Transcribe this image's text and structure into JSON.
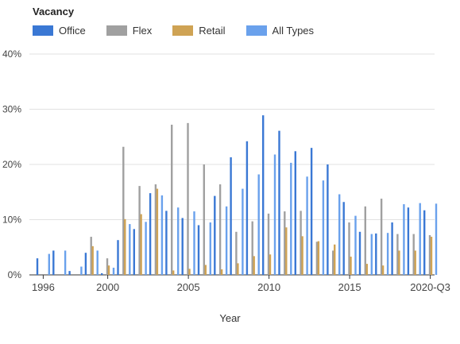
{
  "chart_data": {
    "type": "bar",
    "legend_title": "Vacancy",
    "legend_position": "top-left",
    "xlabel": "Year",
    "ylabel": "",
    "ylim": [
      0,
      40
    ],
    "y_ticks": [
      "0%",
      "10%",
      "20%",
      "30%",
      "40%"
    ],
    "y_tick_values": [
      0,
      10,
      20,
      30,
      40
    ],
    "x_tick_labels": [
      "1996",
      "2000",
      "2005",
      "2010",
      "2015",
      "2020-Q3"
    ],
    "grid": "horizontal",
    "categories": [
      "1996",
      "1997",
      "1998",
      "1999",
      "2000",
      "2001",
      "2002",
      "2003",
      "2004",
      "2005",
      "2006",
      "2007",
      "2008",
      "2009",
      "2010",
      "2011",
      "2012",
      "2013",
      "2014",
      "2015",
      "2016",
      "2017",
      "2018",
      "2019",
      "2020-Q3"
    ],
    "series": [
      {
        "name": "Office",
        "color": "#3a78d4",
        "values": [
          3.0,
          4.4,
          0.7,
          4.0,
          0.3,
          6.3,
          8.3,
          14.8,
          11.6,
          10.3,
          9.0,
          14.3,
          21.3,
          24.2,
          28.9,
          26.1,
          22.4,
          23.0,
          20.0,
          13.2,
          7.8,
          7.5,
          9.5,
          12.2,
          11.7
        ]
      },
      {
        "name": "Flex",
        "color": "#a0a0a0",
        "values": [
          0,
          0,
          0,
          6.9,
          3.0,
          23.2,
          16.1,
          16.4,
          27.2,
          27.5,
          20.0,
          16.4,
          7.8,
          9.7,
          11.1,
          11.5,
          11.6,
          6.0,
          4.4,
          9.5,
          12.4,
          13.8,
          7.4,
          7.4,
          7.2
        ]
      },
      {
        "name": "Retail",
        "color": "#cfa354",
        "values": [
          0,
          0,
          0,
          5.2,
          1.7,
          10.1,
          11.0,
          15.6,
          0.8,
          1.1,
          1.8,
          1.0,
          2.1,
          3.4,
          3.7,
          8.6,
          7.0,
          6.1,
          5.5,
          3.3,
          2.0,
          1.7,
          4.4,
          4.4,
          6.9
        ]
      },
      {
        "name": "All Types",
        "color": "#6aa1ec",
        "values": [
          3.8,
          4.4,
          1.5,
          4.4,
          1.3,
          9.2,
          9.6,
          14.4,
          12.2,
          11.5,
          9.5,
          12.4,
          15.6,
          18.2,
          21.8,
          20.3,
          17.8,
          17.1,
          14.6,
          10.7,
          7.4,
          7.6,
          12.8,
          13.0,
          12.9
        ]
      }
    ]
  }
}
